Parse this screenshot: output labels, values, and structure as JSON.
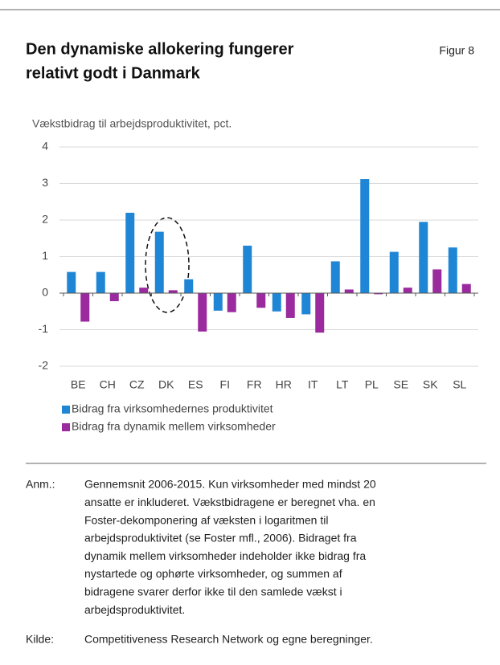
{
  "chart_data": {
    "type": "bar",
    "title": [
      "Den dynamiske allokering fungerer",
      "relativt godt i Danmark"
    ],
    "figure_label": "Figur 8",
    "ylabel": "Vækstbidrag til arbejdsproduktivitet, pct.",
    "categories": [
      "BE",
      "CH",
      "CZ",
      "DK",
      "ES",
      "FI",
      "FR",
      "HR",
      "IT",
      "LT",
      "PL",
      "SE",
      "SK",
      "SL"
    ],
    "series": [
      {
        "name": "Bidrag fra virksomhedernes produktivitet",
        "color": "#1f86d6",
        "values": [
          0.58,
          0.58,
          2.2,
          1.68,
          0.38,
          -0.48,
          1.3,
          -0.5,
          -0.58,
          0.87,
          3.12,
          1.13,
          1.95,
          1.25
        ]
      },
      {
        "name": "Bidrag fra dynamik mellem virksomheder",
        "color": "#9a2a9e",
        "values": [
          -0.78,
          -0.22,
          0.15,
          0.08,
          -1.05,
          -0.52,
          -0.4,
          -0.68,
          -1.08,
          0.1,
          -0.03,
          0.15,
          0.65,
          0.25
        ]
      }
    ],
    "ylim": [
      -2,
      4
    ],
    "yticks": [
      -2,
      -1,
      0,
      1,
      2,
      3,
      4
    ],
    "grid": true,
    "notes": {
      "label": "Anm.:",
      "lines": [
        "Gennemsnit 2006-2015. Kun virksomheder med mindst 20",
        "ansatte er inkluderet. Vækstbidragene er beregnet vha. en",
        "Foster-dekomponering af væksten i logaritmen til",
        "arbejdsproduktivitet (se Foster mfl., 2006). Bidraget fra",
        "dynamik mellem virksomheder indeholder ikke bidrag fra",
        "nystartede og ophørte virksomheder, og summen af",
        "bidragene svarer derfor ikke til den samlede vækst i",
        "arbejdsproduktivitet."
      ]
    },
    "source": {
      "label": "Kilde:",
      "text": "Competitiveness Research Network og egne beregninger."
    }
  }
}
